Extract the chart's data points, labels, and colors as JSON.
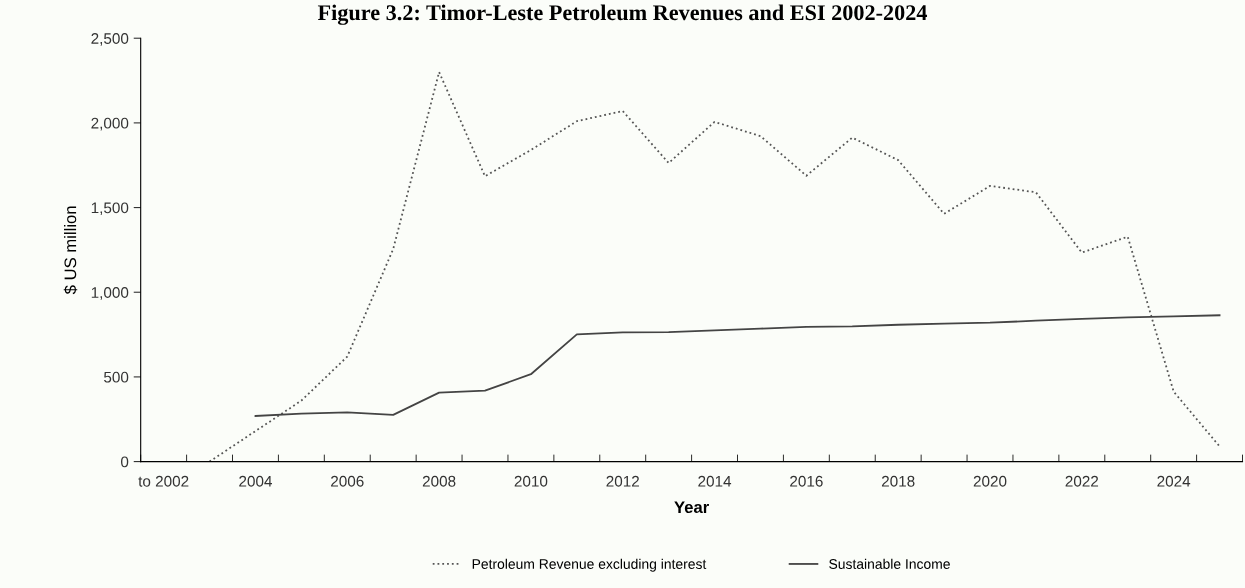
{
  "chart_data": {
    "type": "line",
    "title": "Figure 3.2: Timor-Leste Petroleum Revenues and ESI 2002-2024",
    "xlabel": "Year",
    "ylabel": "$ US million",
    "categories": [
      "to 2002",
      null,
      "2004",
      null,
      "2006",
      null,
      "2008",
      null,
      "2010",
      null,
      "2012",
      null,
      "2014",
      null,
      "2016",
      null,
      "2018",
      null,
      "2020",
      null,
      "2022",
      null,
      "2024",
      null
    ],
    "series": [
      {
        "name": "Petroleum Revenue excluding interest",
        "color": "#555555",
        "line_style": "dotted",
        "values": [
          null,
          0,
          180,
          360,
          620,
          1255,
          2300,
          1685,
          1840,
          2010,
          2070,
          1763,
          2006,
          1922,
          1688,
          1913,
          1780,
          1463,
          1628,
          1590,
          1234,
          1328,
          413,
          90
        ]
      },
      {
        "name": "Sustainable Income",
        "color": "#444444",
        "line_style": "solid",
        "values": [
          null,
          null,
          269,
          283,
          290,
          276,
          407,
          419,
          516,
          751,
          763,
          765,
          775,
          785,
          795,
          798,
          808,
          815,
          820,
          832,
          843,
          852,
          857,
          864
        ]
      }
    ],
    "ylim": [
      0,
      2500
    ],
    "yticks": [
      0,
      {
        "value": 500,
        "label": "500"
      },
      {
        "value": 1000,
        "label": "1,000"
      },
      {
        "value": 1500,
        "label": "1,500"
      },
      {
        "value": 2000,
        "label": "2,000"
      },
      {
        "value": 2500,
        "label": "2,500"
      }
    ],
    "grid": false,
    "legend": "bottom",
    "marker": "none"
  }
}
